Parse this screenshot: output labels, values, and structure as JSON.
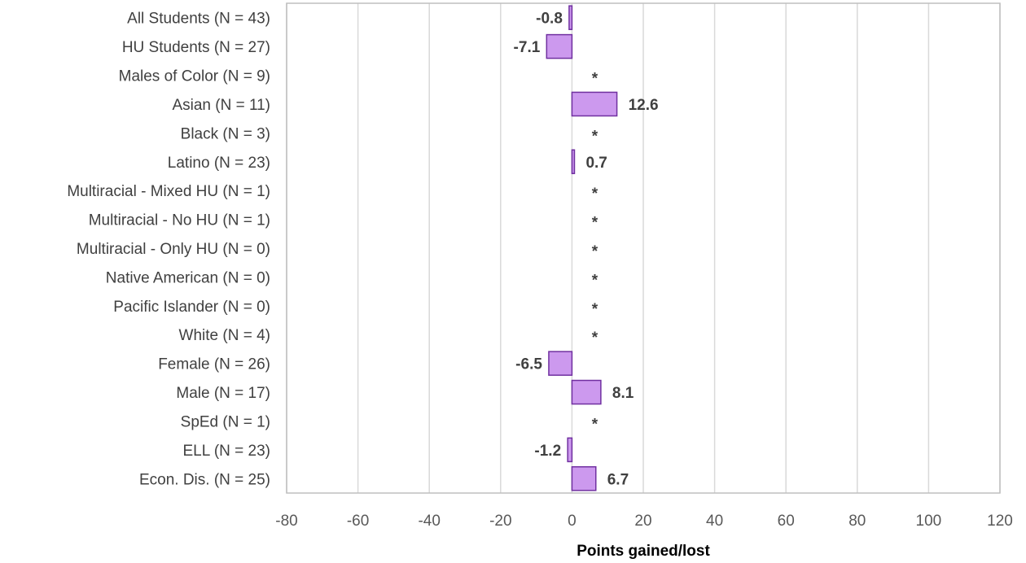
{
  "chart_data": {
    "type": "bar",
    "orientation": "horizontal",
    "title": "",
    "xlabel": "Points gained/lost",
    "ylabel": "",
    "xlim": [
      -80,
      120
    ],
    "xticks": [
      -80,
      -60,
      -40,
      -20,
      0,
      20,
      40,
      60,
      80,
      100,
      120
    ],
    "grid": true,
    "legend": "none",
    "colors": {
      "bar_fill": "#cc99ee",
      "bar_stroke": "#7030a0",
      "grid": "#d9d9d9",
      "border": "#bfbfbf"
    },
    "suppressed_marker": "*",
    "categories": [
      "All Students (N = 43)",
      "HU Students (N = 27)",
      "Males of Color (N = 9)",
      "Asian (N = 11)",
      "Black (N = 3)",
      "Latino (N = 23)",
      "Multiracial - Mixed HU (N = 1)",
      "Multiracial - No HU (N = 1)",
      "Multiracial - Only HU (N = 0)",
      "Native American (N = 0)",
      "Pacific Islander (N = 0)",
      "White (N = 4)",
      "Female (N = 26)",
      "Male (N = 17)",
      "SpEd (N = 1)",
      "ELL (N = 23)",
      "Econ. Dis. (N = 25)"
    ],
    "values": [
      -0.8,
      -7.1,
      null,
      12.6,
      null,
      0.7,
      null,
      null,
      null,
      null,
      null,
      null,
      -6.5,
      8.1,
      null,
      -1.2,
      6.7
    ],
    "data_labels": [
      "-0.8",
      "-7.1",
      "*",
      "12.6",
      "*",
      "0.7",
      "*",
      "*",
      "*",
      "*",
      "*",
      "*",
      "-6.5",
      "8.1",
      "*",
      "-1.2",
      "6.7"
    ]
  }
}
